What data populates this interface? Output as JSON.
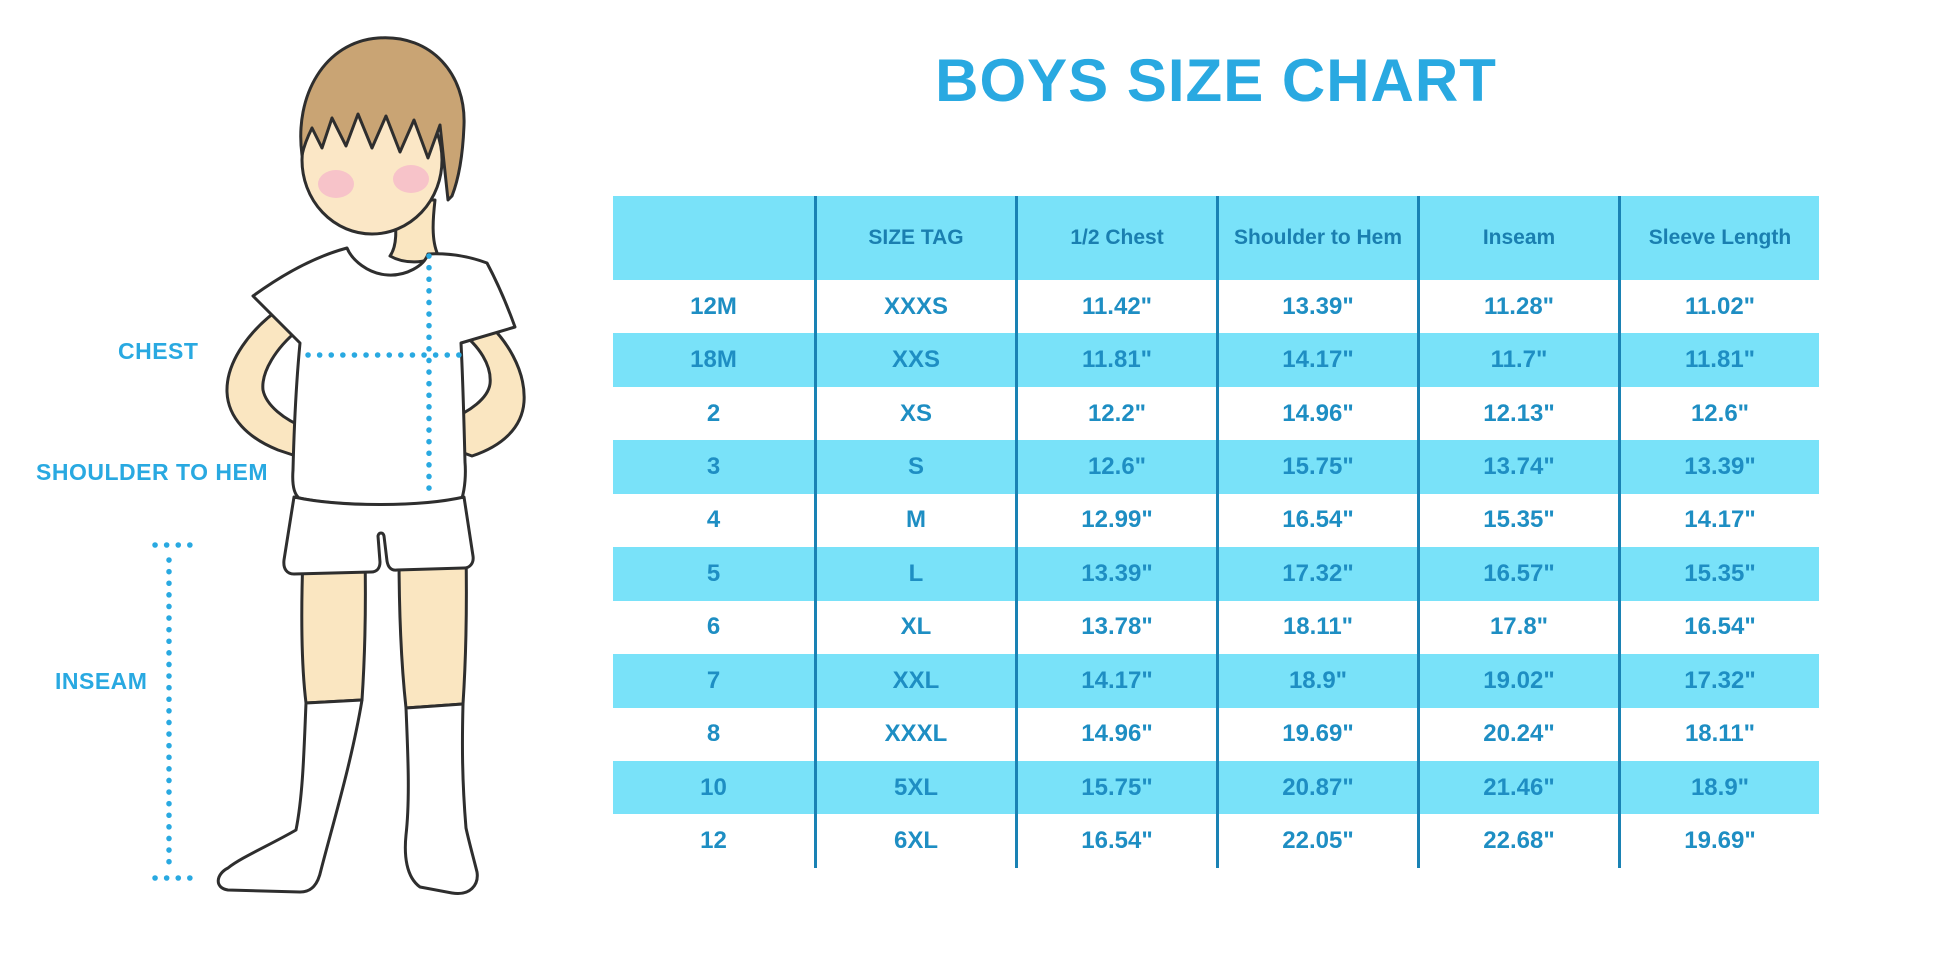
{
  "page": {
    "title": "BOYS SIZE CHART"
  },
  "figure_labels": {
    "chest": "CHEST",
    "shoulder_to_hem": "SHOULDER TO HEM",
    "inseam": "INSEAM"
  },
  "colors": {
    "accent_cyan": "#29A9E1",
    "stripe_blue": "#79E2F9",
    "header_text": "#1A7FB0",
    "cell_text": "#1E8EC3",
    "separator_line": "#1A82B4",
    "skin": "#FAE6C1",
    "hair": "#C9A474"
  },
  "chart_data": {
    "type": "table",
    "title": "BOYS SIZE CHART",
    "columns": [
      "",
      "SIZE TAG",
      "1/2 Chest",
      "Shoulder to Hem",
      "Inseam",
      "Sleeve Length"
    ],
    "rows": [
      [
        "12M",
        "XXXS",
        "11.42\"",
        "13.39\"",
        "11.28\"",
        "11.02\""
      ],
      [
        "18M",
        "XXS",
        "11.81\"",
        "14.17\"",
        "11.7\"",
        "11.81\""
      ],
      [
        "2",
        "XS",
        "12.2\"",
        "14.96\"",
        "12.13\"",
        "12.6\""
      ],
      [
        "3",
        "S",
        "12.6\"",
        "15.75\"",
        "13.74\"",
        "13.39\""
      ],
      [
        "4",
        "M",
        "12.99\"",
        "16.54\"",
        "15.35\"",
        "14.17\""
      ],
      [
        "5",
        "L",
        "13.39\"",
        "17.32\"",
        "16.57\"",
        "15.35\""
      ],
      [
        "6",
        "XL",
        "13.78\"",
        "18.11\"",
        "17.8\"",
        "16.54\""
      ],
      [
        "7",
        "XXL",
        "14.17\"",
        "18.9\"",
        "19.02\"",
        "17.32\""
      ],
      [
        "8",
        "XXXL",
        "14.96\"",
        "19.69\"",
        "20.24\"",
        "18.11\""
      ],
      [
        "10",
        "5XL",
        "15.75\"",
        "20.87\"",
        "21.46\"",
        "18.9\""
      ],
      [
        "12",
        "6XL",
        "16.54\"",
        "22.05\"",
        "22.68\"",
        "19.69\""
      ]
    ]
  }
}
